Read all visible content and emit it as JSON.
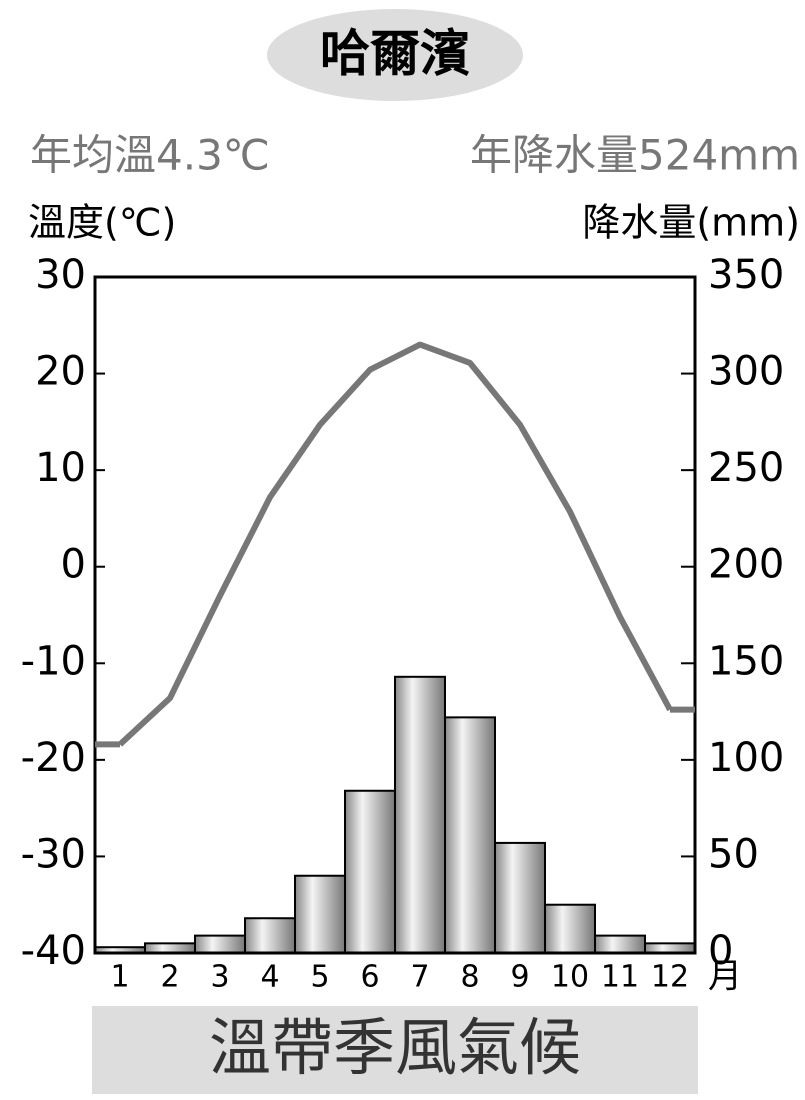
{
  "chart_data": {
    "type": "climate",
    "title": "哈爾濱",
    "annual_temperature": "年均溫4.3℃",
    "annual_precipitation": "年降水量524mm",
    "ylabel": "溫度(℃)",
    "y2label": "降水量(mm)",
    "xunit": "月",
    "footer": "溫帶季風氣候",
    "categories": [
      "1",
      "2",
      "3",
      "4",
      "5",
      "6",
      "7",
      "8",
      "9",
      "10",
      "11",
      "12"
    ],
    "series": [
      {
        "type": "line",
        "axis": "y",
        "color": "#777777",
        "values": [
          -18.4,
          -13.6,
          -3,
          7.2,
          14.7,
          20.4,
          23,
          21.1,
          14.7,
          5.7,
          -5.2,
          -14.8
        ]
      },
      {
        "type": "bar",
        "axis": "y2",
        "color": "#bbbbbb",
        "values": [
          3,
          5,
          9,
          18,
          40,
          84,
          143,
          122,
          57,
          25,
          9,
          5
        ]
      }
    ],
    "ylim": [
      -40,
      30
    ],
    "yticks": [
      -40,
      -30,
      -20,
      -10,
      0,
      10,
      20,
      30
    ],
    "y2lim": [
      0,
      350
    ],
    "y2ticks": [
      0,
      50,
      100,
      150,
      200,
      250,
      300,
      350
    ]
  }
}
